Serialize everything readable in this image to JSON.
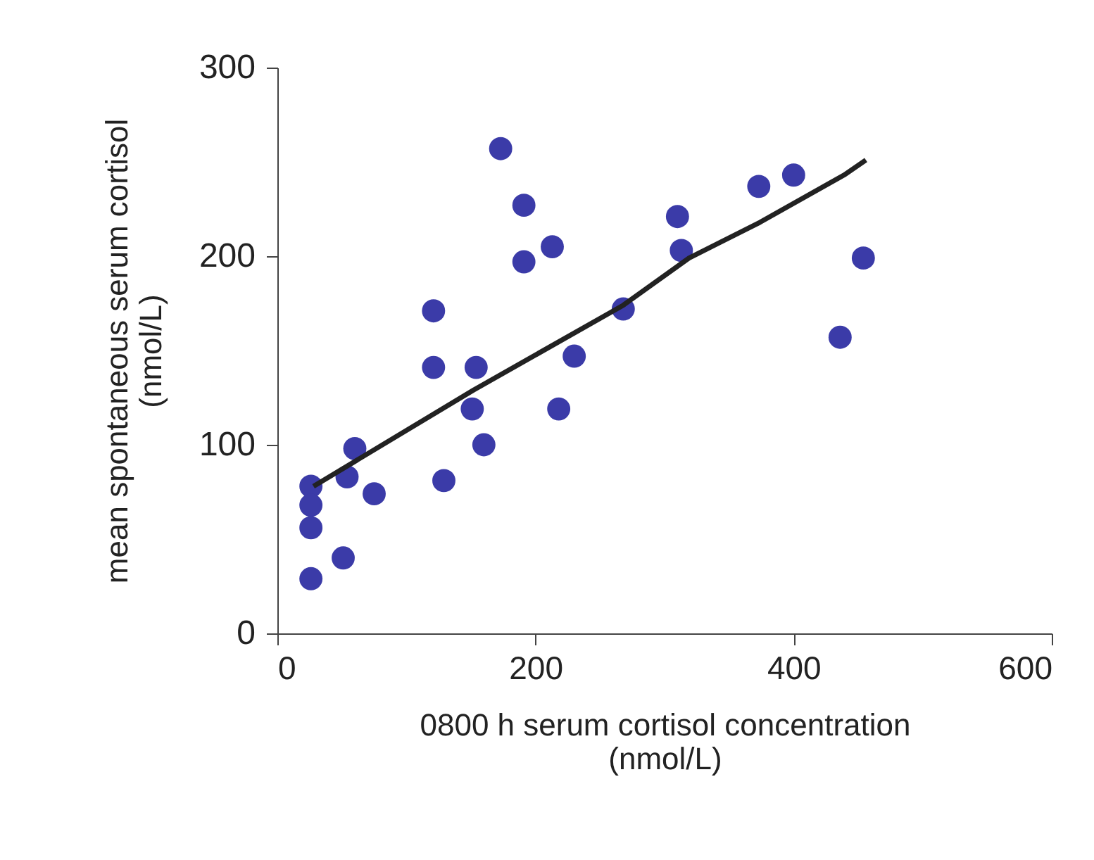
{
  "chart_data": {
    "type": "scatter",
    "xlabel": "0800 h serum cortisol concentration\n(nmol/L)",
    "ylabel": "mean spontaneous serum cortisol\n(nmol/L)",
    "xlim": [
      0,
      600
    ],
    "xticks": [
      0,
      200,
      400,
      600
    ],
    "ylim": [
      0,
      300
    ],
    "yticks": [
      0,
      100,
      200,
      300
    ],
    "grid": false,
    "series": [
      {
        "marker": "circle",
        "color": "#3b3ba8",
        "x": [
          26,
          26,
          26,
          26,
          51,
          54,
          60,
          75,
          121,
          121,
          129,
          151,
          154,
          160,
          173,
          191,
          191,
          213,
          218,
          230,
          268,
          310,
          313,
          373,
          400,
          436,
          454
        ],
        "values": [
          78,
          68,
          56,
          29,
          40,
          83,
          98,
          74,
          171,
          141,
          81,
          119,
          141,
          100,
          257,
          227,
          197,
          205,
          119,
          147,
          172,
          221,
          203,
          237,
          243,
          157,
          199
        ]
      },
      {
        "type": "line",
        "color": "#222222",
        "line_style": "solid",
        "marker": "none",
        "x": [
          28,
          152,
          268,
          319,
          374,
          439,
          456
        ],
        "values": [
          78,
          129,
          174,
          199,
          218,
          243,
          251
        ]
      }
    ]
  }
}
